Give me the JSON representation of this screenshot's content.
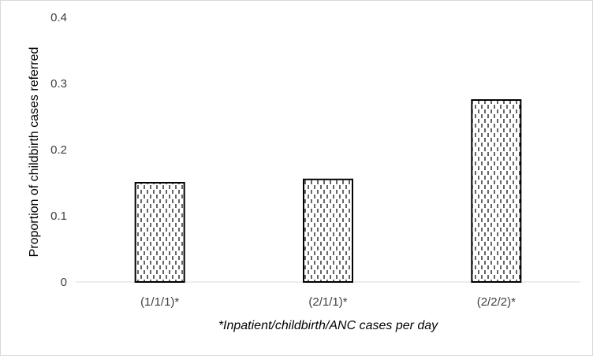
{
  "chart_data": {
    "type": "bar",
    "title": "",
    "categories": [
      "(1/1/1)*",
      "(2/1/1)*",
      "(2/2/2)*"
    ],
    "values": [
      0.15,
      0.155,
      0.275
    ],
    "xlabel": "*Inpatient/childbirth/ANC cases per day",
    "ylabel": "Proportion of childbirth cases referred",
    "ylim": [
      0,
      0.4
    ],
    "yticks": [
      "0",
      "0.1",
      "0.2",
      "0.3",
      "0.4"
    ],
    "grid": false,
    "legend": "none",
    "bar_fill": "dashed vertical line pattern",
    "bar_stroke": "#000000",
    "axis_color": "#d9d9d9"
  }
}
